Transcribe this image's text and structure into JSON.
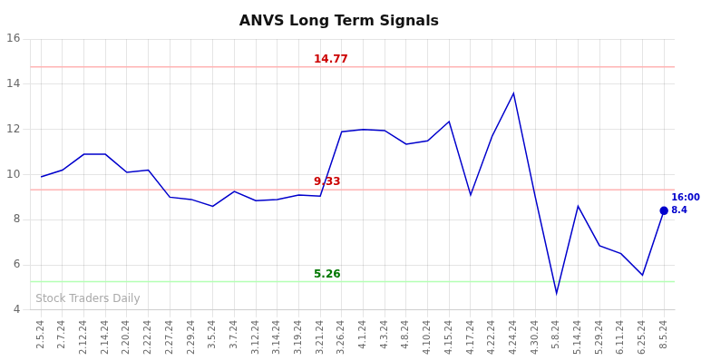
{
  "chart_data": {
    "type": "line",
    "title": "ANVS Long Term Signals",
    "categories": [
      "2.5.24",
      "2.7.24",
      "2.12.24",
      "2.14.24",
      "2.20.24",
      "2.22.24",
      "2.27.24",
      "2.29.24",
      "3.5.24",
      "3.7.24",
      "3.12.24",
      "3.14.24",
      "3.19.24",
      "3.21.24",
      "3.26.24",
      "4.1.24",
      "4.3.24",
      "4.8.24",
      "4.10.24",
      "4.15.24",
      "4.17.24",
      "4.22.24",
      "4.24.24",
      "4.30.24",
      "5.8.24",
      "5.14.24",
      "5.29.24",
      "6.11.24",
      "6.25.24",
      "8.5.24"
    ],
    "values": [
      9.9,
      10.2,
      10.9,
      10.9,
      10.1,
      10.2,
      9.0,
      8.9,
      8.6,
      9.25,
      8.85,
      8.9,
      9.1,
      9.05,
      11.9,
      12.0,
      11.95,
      11.35,
      11.5,
      12.35,
      9.1,
      11.7,
      13.6,
      9.05,
      4.75,
      8.6,
      6.85,
      6.5,
      5.55,
      8.4
    ],
    "color": "#0000cc",
    "reference_lines": [
      {
        "value": 14.77,
        "color": "#ffb3b3",
        "label_color": "#cc0000"
      },
      {
        "value": 9.33,
        "color": "#ffb3b3",
        "label_color": "#cc0000"
      },
      {
        "value": 5.26,
        "color": "#b3ffb3",
        "label_color": "#007700"
      }
    ],
    "annotations": [
      "16:00",
      "8.4"
    ],
    "watermark": "Stock Traders Daily",
    "ylim": [
      4,
      16
    ],
    "yticks": [
      4,
      6,
      8,
      10,
      12,
      14,
      16
    ],
    "grid": true
  }
}
